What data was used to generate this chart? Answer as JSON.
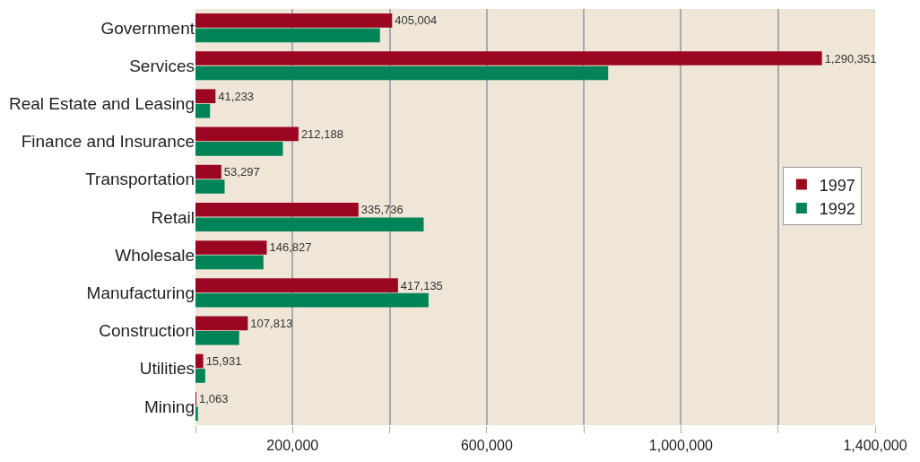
{
  "chart_data": {
    "type": "bar",
    "orientation": "horizontal",
    "categories": [
      "Government",
      "Services",
      "Real Estate and Leasing",
      "Finance and Insurance",
      "Transportation",
      "Retail",
      "Wholesale",
      "Manufacturing",
      "Construction",
      "Utilities",
      "Mining"
    ],
    "series": [
      {
        "name": "1997",
        "color": "#9b0620",
        "values": [
          405004,
          1290351,
          41233,
          212188,
          53297,
          335736,
          146827,
          417135,
          107813,
          15931,
          1063
        ],
        "value_labels": [
          "405,004",
          "1,290,351",
          "41,233",
          "212,188",
          "53,297",
          "335,736",
          "146,827",
          "417,135",
          "107,813",
          "15,931",
          "1,063"
        ]
      },
      {
        "name": "1992",
        "color": "#008357",
        "values": [
          380000,
          850000,
          30000,
          180000,
          60000,
          470000,
          140000,
          480000,
          90000,
          20000,
          5000
        ]
      }
    ],
    "xlim": [
      0,
      1400000
    ],
    "xticks": [
      {
        "value": 0,
        "label": null
      },
      {
        "value": 200000,
        "label": "200,000"
      },
      {
        "value": 400000,
        "label": null
      },
      {
        "value": 600000,
        "label": "600,000"
      },
      {
        "value": 800000,
        "label": null
      },
      {
        "value": 1000000,
        "label": "1,000,000"
      },
      {
        "value": 1200000,
        "label": null
      },
      {
        "value": 1400000,
        "label": "1,400,000"
      }
    ],
    "grid": "x",
    "legend": "right"
  }
}
